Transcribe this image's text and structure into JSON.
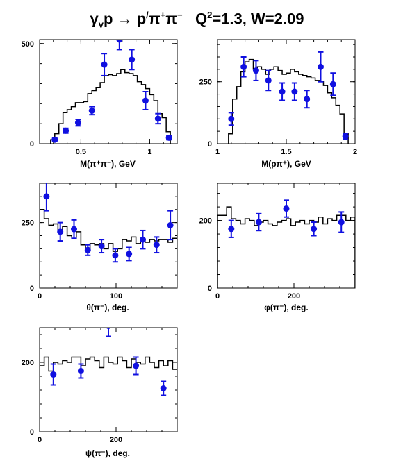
{
  "title": {
    "gamma": "γ",
    "gamma_sub": "v",
    "p": "p → p",
    "prime": "/",
    "pi_plus": "π",
    "plus": "+",
    "pi_minus": "π",
    "minus": "−",
    "q": "Q",
    "q_sup": "2",
    "rest": "=1.3, W=2.09"
  },
  "colors": {
    "histogram": "#000000",
    "points": "#1010e0"
  },
  "chart_data": [
    {
      "type": "scatter",
      "xlabel": "M(π⁺π⁻), GeV",
      "xlim": [
        0.2,
        1.2
      ],
      "ylim": [
        0,
        520
      ],
      "xticks": [
        0.5,
        1
      ],
      "xtick_labels": [
        "0.5",
        "1"
      ],
      "yticks": [
        0,
        500
      ],
      "ytick_labels": [
        "0",
        "500"
      ],
      "points": [
        {
          "x": 0.31,
          "y": 20,
          "err": 8
        },
        {
          "x": 0.39,
          "y": 65,
          "err": 12
        },
        {
          "x": 0.48,
          "y": 105,
          "err": 16
        },
        {
          "x": 0.58,
          "y": 165,
          "err": 20
        },
        {
          "x": 0.67,
          "y": 395,
          "err": 55
        },
        {
          "x": 0.78,
          "y": 520,
          "err": 50
        },
        {
          "x": 0.87,
          "y": 420,
          "err": 50
        },
        {
          "x": 0.97,
          "y": 215,
          "err": 45
        },
        {
          "x": 1.06,
          "y": 125,
          "err": 25
        },
        {
          "x": 1.14,
          "y": 30,
          "err": 10
        }
      ],
      "histogram": {
        "edges": [
          0.28,
          0.31,
          0.34,
          0.37,
          0.4,
          0.43,
          0.46,
          0.49,
          0.52,
          0.55,
          0.58,
          0.61,
          0.64,
          0.67,
          0.7,
          0.73,
          0.76,
          0.79,
          0.82,
          0.85,
          0.88,
          0.91,
          0.94,
          0.97,
          1.0,
          1.03,
          1.06,
          1.09,
          1.12,
          1.15
        ],
        "values": [
          20,
          50,
          100,
          155,
          170,
          185,
          205,
          205,
          210,
          250,
          265,
          280,
          305,
          340,
          345,
          340,
          350,
          370,
          355,
          350,
          340,
          310,
          295,
          275,
          245,
          215,
          150,
          130,
          60
        ]
      }
    },
    {
      "type": "scatter",
      "xlabel": "M(pπ⁺), GeV",
      "xlim": [
        1.0,
        2.0
      ],
      "ylim": [
        0,
        420
      ],
      "xticks": [
        1,
        1.5,
        2
      ],
      "xtick_labels": [
        "1",
        "1.5",
        "2"
      ],
      "yticks": [
        0,
        250
      ],
      "ytick_labels": [
        "0",
        "250"
      ],
      "points": [
        {
          "x": 1.1,
          "y": 100,
          "err": 25
        },
        {
          "x": 1.19,
          "y": 310,
          "err": 40
        },
        {
          "x": 1.28,
          "y": 295,
          "err": 40
        },
        {
          "x": 1.37,
          "y": 255,
          "err": 40
        },
        {
          "x": 1.47,
          "y": 210,
          "err": 35
        },
        {
          "x": 1.56,
          "y": 210,
          "err": 35
        },
        {
          "x": 1.65,
          "y": 180,
          "err": 35
        },
        {
          "x": 1.75,
          "y": 310,
          "err": 60
        },
        {
          "x": 1.84,
          "y": 240,
          "err": 45
        },
        {
          "x": 1.93,
          "y": 30,
          "err": 12
        }
      ],
      "histogram": {
        "edges": [
          1.08,
          1.11,
          1.14,
          1.17,
          1.2,
          1.23,
          1.26,
          1.29,
          1.32,
          1.35,
          1.38,
          1.41,
          1.44,
          1.47,
          1.5,
          1.53,
          1.56,
          1.59,
          1.62,
          1.65,
          1.68,
          1.71,
          1.74,
          1.77,
          1.8,
          1.83,
          1.86,
          1.89,
          1.92,
          1.95
        ],
        "values": [
          40,
          180,
          230,
          290,
          330,
          340,
          300,
          310,
          300,
          280,
          300,
          310,
          295,
          280,
          285,
          300,
          290,
          280,
          275,
          270,
          265,
          255,
          250,
          235,
          205,
          185,
          155,
          120,
          40
        ]
      }
    },
    {
      "type": "scatter",
      "xlabel": "θ(π⁻), deg.",
      "xlim": [
        0,
        180
      ],
      "ylim": [
        0,
        400
      ],
      "xticks": [
        0,
        100
      ],
      "xtick_labels": [
        "0",
        "100"
      ],
      "yticks": [
        0,
        250
      ],
      "ytick_labels": [
        "0",
        "250"
      ],
      "points": [
        {
          "x": 9,
          "y": 350,
          "err": 55
        },
        {
          "x": 27,
          "y": 215,
          "err": 35
        },
        {
          "x": 45,
          "y": 225,
          "err": 35
        },
        {
          "x": 63,
          "y": 145,
          "err": 20
        },
        {
          "x": 81,
          "y": 160,
          "err": 25
        },
        {
          "x": 99,
          "y": 125,
          "err": 25
        },
        {
          "x": 117,
          "y": 130,
          "err": 25
        },
        {
          "x": 135,
          "y": 185,
          "err": 35
        },
        {
          "x": 153,
          "y": 165,
          "err": 30
        },
        {
          "x": 171,
          "y": 240,
          "err": 55
        }
      ],
      "histogram": {
        "edges": [
          0,
          6,
          12,
          18,
          24,
          30,
          36,
          42,
          48,
          54,
          60,
          66,
          72,
          78,
          84,
          90,
          96,
          102,
          108,
          114,
          120,
          126,
          132,
          138,
          144,
          150,
          156,
          162,
          168,
          174,
          180
        ],
        "values": [
          300,
          265,
          240,
          245,
          215,
          235,
          200,
          190,
          215,
          165,
          145,
          170,
          165,
          170,
          150,
          170,
          140,
          150,
          185,
          180,
          195,
          170,
          185,
          175,
          185,
          180,
          185,
          185,
          175,
          190
        ]
      }
    },
    {
      "type": "scatter",
      "xlabel": "φ(π⁻), deg.",
      "xlim": [
        0,
        360
      ],
      "ylim": [
        0,
        310
      ],
      "xticks": [
        0,
        200
      ],
      "xtick_labels": [
        "0",
        "200"
      ],
      "yticks": [
        0,
        200
      ],
      "ytick_labels": [
        "0",
        "200"
      ],
      "points": [
        {
          "x": 36,
          "y": 175,
          "err": 25
        },
        {
          "x": 108,
          "y": 195,
          "err": 25
        },
        {
          "x": 180,
          "y": 235,
          "err": 25
        },
        {
          "x": 252,
          "y": 175,
          "err": 20
        },
        {
          "x": 324,
          "y": 195,
          "err": 30
        }
      ],
      "histogram": {
        "edges": [
          0,
          12,
          24,
          36,
          48,
          60,
          72,
          84,
          96,
          108,
          120,
          132,
          144,
          156,
          168,
          180,
          192,
          204,
          216,
          228,
          240,
          252,
          264,
          276,
          288,
          300,
          312,
          324,
          336,
          348,
          360
        ],
        "values": [
          215,
          215,
          240,
          205,
          200,
          190,
          205,
          200,
          185,
          195,
          200,
          190,
          185,
          195,
          200,
          205,
          185,
          195,
          200,
          190,
          200,
          195,
          210,
          190,
          205,
          200,
          215,
          215,
          200,
          210
        ]
      }
    },
    {
      "type": "scatter",
      "xlabel": "ψ(π⁻), deg.",
      "xlim": [
        0,
        360
      ],
      "ylim": [
        0,
        300
      ],
      "xticks": [
        0,
        200
      ],
      "xtick_labels": [
        "0",
        "200"
      ],
      "yticks": [
        0,
        200
      ],
      "ytick_labels": [
        "0",
        "200"
      ],
      "points": [
        {
          "x": 36,
          "y": 165,
          "err": 30
        },
        {
          "x": 108,
          "y": 175,
          "err": 20
        },
        {
          "x": 180,
          "y": 305,
          "err": 30
        },
        {
          "x": 252,
          "y": 190,
          "err": 25
        },
        {
          "x": 324,
          "y": 125,
          "err": 20
        }
      ],
      "histogram": {
        "edges": [
          0,
          12,
          24,
          36,
          48,
          60,
          72,
          84,
          96,
          108,
          120,
          132,
          144,
          156,
          168,
          180,
          192,
          204,
          216,
          228,
          240,
          252,
          264,
          276,
          288,
          300,
          312,
          324,
          336,
          348,
          360
        ],
        "values": [
          190,
          215,
          175,
          200,
          195,
          205,
          200,
          215,
          215,
          190,
          210,
          215,
          205,
          185,
          215,
          200,
          195,
          215,
          205,
          185,
          210,
          200,
          195,
          215,
          200,
          185,
          205,
          190,
          205,
          180
        ]
      }
    }
  ]
}
